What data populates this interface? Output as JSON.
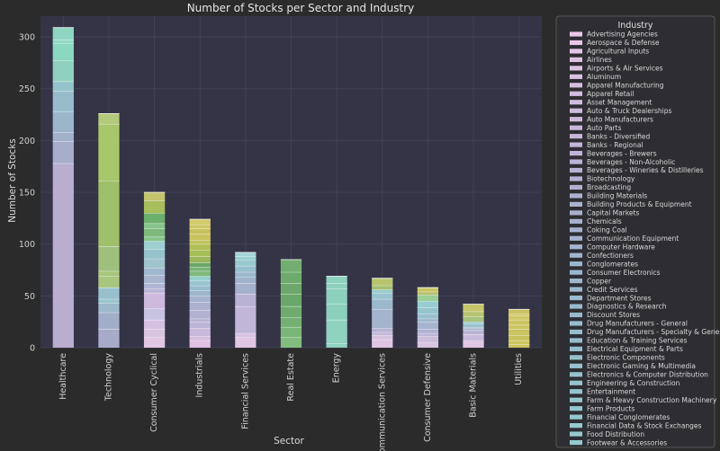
{
  "chart_data": {
    "type": "bar",
    "stacked": true,
    "title": "Number of Stocks per Sector and Industry",
    "xlabel": "Sector",
    "ylabel": "Number of Stocks",
    "ylim": [
      0,
      320
    ],
    "yticks": [
      0,
      50,
      100,
      150,
      200,
      250,
      300
    ],
    "grid": true,
    "legend_title": "Industry",
    "legend_position": "right",
    "categories": [
      "Healthcare",
      "Technology",
      "Consumer Cyclical",
      "Industrials",
      "Financial Services",
      "Real Estate",
      "Energy",
      "Communication Services",
      "Consumer Defensive",
      "Basic Materials",
      "Utilities"
    ],
    "totals": [
      309,
      226,
      150,
      124,
      92,
      85,
      69,
      67,
      58,
      42,
      37
    ],
    "segment_boundaries": [
      [
        178,
        199,
        208,
        228,
        248,
        257,
        277,
        294,
        297,
        309
      ],
      [
        18,
        34,
        43,
        47,
        58,
        69,
        74,
        98,
        161,
        216,
        226
      ],
      [
        10,
        18,
        27,
        38,
        53,
        57,
        62,
        70,
        77,
        86,
        95,
        103,
        107,
        115,
        120,
        130,
        142,
        150
      ],
      [
        7,
        11,
        19,
        25,
        28,
        36,
        44,
        50,
        55,
        60,
        65,
        69,
        74,
        78,
        82,
        88,
        94,
        100,
        104,
        110,
        115,
        119,
        124
      ],
      [
        10,
        14,
        40,
        52,
        62,
        68,
        73,
        79,
        85,
        88,
        92
      ],
      [
        10,
        20,
        29,
        40,
        52,
        62,
        73,
        85
      ],
      [
        4,
        27,
        42,
        57,
        62,
        69
      ],
      [
        8,
        12,
        15,
        19,
        37,
        47,
        53,
        56,
        60,
        67
      ],
      [
        5,
        11,
        14,
        18,
        25,
        28,
        33,
        39,
        45,
        51,
        54,
        58
      ],
      [
        5,
        7,
        13,
        17,
        19,
        20,
        23,
        25,
        30,
        35,
        42
      ],
      [
        3,
        7,
        12,
        18,
        22,
        27,
        31,
        33,
        37
      ]
    ],
    "segment_colors": [
      [
        "#b9aecf",
        "#a8adcb",
        "#a3b2cc",
        "#9bb6cb",
        "#98bccb",
        "#94c3cb",
        "#8fd1c0",
        "#8bd8c0",
        "#90d8c4",
        "#8ed6c2"
      ],
      [
        "#a7abc9",
        "#a2aec9",
        "#9db9cb",
        "#99c6cd",
        "#98c0cc",
        "#a7c77f",
        "#a8c67c",
        "#9ec07c",
        "#9fc06a",
        "#a8c66c",
        "#b3c97b"
      ],
      [
        "#e1c6e2",
        "#d9c4e0",
        "#d6c0df",
        "#c8c3e0",
        "#cdb9dc",
        "#b8b5d6",
        "#b2b4d3",
        "#a9b4cf",
        "#a0b8ce",
        "#a0c4ce",
        "#97c4cc",
        "#9dcfd0",
        "#88c58b",
        "#7fba7d",
        "#86c38a",
        "#6daf6c",
        "#a8bd5b",
        "#c4c46e"
      ],
      [
        "#dfc1e2",
        "#d6bee0",
        "#c9b9dc",
        "#bdb5d7",
        "#b7b3d4",
        "#b3b1d2",
        "#acb1cf",
        "#a5b3ce",
        "#9db6cc",
        "#98bbcc",
        "#98c4cf",
        "#96cece",
        "#7fb87d",
        "#77b275",
        "#6ba86a",
        "#9ab75c",
        "#a7bd58",
        "#b1bf57",
        "#bfc25b",
        "#c9c35e",
        "#c7c25d",
        "#cec766",
        "#d2c968"
      ],
      [
        "#e0c6e3",
        "#d8c2e1",
        "#c1b6d8",
        "#b9b2d4",
        "#a6b2cd",
        "#9fb4cc",
        "#9ab8cc",
        "#98bfcd",
        "#97c9cf",
        "#96cfd0",
        "#a1d4d6"
      ],
      [
        "#82bd7e",
        "#7ab677",
        "#74b072",
        "#6eab6d",
        "#6aa869",
        "#6ca86b",
        "#6eaa6c",
        "#72ae70"
      ],
      [
        "#8fd1bf",
        "#8fd2c0",
        "#8bcfbc",
        "#8dd0be",
        "#8fd1c0",
        "#8ed1bf"
      ],
      [
        "#e0c5e2",
        "#d6c2e0",
        "#c5b8d9",
        "#b6b3d4",
        "#a3b4cc",
        "#9bb8cd",
        "#99c3ce",
        "#98ccd0",
        "#a5bf72",
        "#b7c46d"
      ],
      [
        "#d8c3e0",
        "#ccbddc",
        "#bcb6d7",
        "#b0b2d1",
        "#a6b4cd",
        "#9eb7cc",
        "#99c0cd",
        "#94c6cc",
        "#97cdd0",
        "#9bcf96",
        "#b9c371",
        "#c9c564"
      ],
      [
        "#e0c5e2",
        "#d5c0df",
        "#c7badb",
        "#b8b3d4",
        "#a7b3cd",
        "#9cb7cc",
        "#97c1cd",
        "#98cbcf",
        "#a8c27c",
        "#b6c370",
        "#c6c56a"
      ],
      [
        "#c9c35f",
        "#cbc55f",
        "#c8c35d",
        "#c9c360",
        "#cbc560",
        "#cbc461",
        "#d0c766",
        "#cdc563",
        "#c9c35f"
      ]
    ],
    "legend": [
      {
        "label": "Advertising Agencies",
        "color": "#e8c9e8"
      },
      {
        "label": "Aerospace & Defense",
        "color": "#e6c7e7"
      },
      {
        "label": "Agricultural Inputs",
        "color": "#e3c5e5"
      },
      {
        "label": "Airlines",
        "color": "#e0c3e4"
      },
      {
        "label": "Airports & Air Services",
        "color": "#ddc1e2"
      },
      {
        "label": "Aluminum",
        "color": "#dac0e1"
      },
      {
        "label": "Apparel Manufacturing",
        "color": "#d7bfe0"
      },
      {
        "label": "Apparel Retail",
        "color": "#d4bddf"
      },
      {
        "label": "Asset Management",
        "color": "#d1bcdd"
      },
      {
        "label": "Auto & Truck Dealerships",
        "color": "#cebadc"
      },
      {
        "label": "Auto Manufacturers",
        "color": "#cbb9db"
      },
      {
        "label": "Auto Parts",
        "color": "#c8b7da"
      },
      {
        "label": "Banks - Diversified",
        "color": "#c5b6d8"
      },
      {
        "label": "Banks - Regional",
        "color": "#c2b5d7"
      },
      {
        "label": "Beverages - Brewers",
        "color": "#bfb4d6"
      },
      {
        "label": "Beverages - Non-Alcoholic",
        "color": "#bcb3d5"
      },
      {
        "label": "Beverages - Wineries & Distilleries",
        "color": "#b9b2d4"
      },
      {
        "label": "Biotechnology",
        "color": "#b6b1d3"
      },
      {
        "label": "Broadcasting",
        "color": "#b3b1d2"
      },
      {
        "label": "Building Materials",
        "color": "#b0b1d1"
      },
      {
        "label": "Building Products & Equipment",
        "color": "#adb1d0"
      },
      {
        "label": "Capital Markets",
        "color": "#aab1cf"
      },
      {
        "label": "Chemicals",
        "color": "#a8b2cf"
      },
      {
        "label": "Coking Coal",
        "color": "#a6b2ce"
      },
      {
        "label": "Communication Equipment",
        "color": "#a4b3ce"
      },
      {
        "label": "Computer Hardware",
        "color": "#a2b4cd"
      },
      {
        "label": "Confectioners",
        "color": "#a0b5cd"
      },
      {
        "label": "Conglomerates",
        "color": "#9eb6cd"
      },
      {
        "label": "Consumer Electronics",
        "color": "#9cb7cc"
      },
      {
        "label": "Copper",
        "color": "#9bb8cc"
      },
      {
        "label": "Credit Services",
        "color": "#9ab9cc"
      },
      {
        "label": "Department Stores",
        "color": "#99bacc"
      },
      {
        "label": "Diagnostics & Research",
        "color": "#98bbcc"
      },
      {
        "label": "Discount Stores",
        "color": "#98bccc"
      },
      {
        "label": "Drug Manufacturers - General",
        "color": "#97bdcc"
      },
      {
        "label": "Drug Manufacturers - Specialty & Generic",
        "color": "#97becc"
      },
      {
        "label": "Education & Training Services",
        "color": "#96bfcc"
      },
      {
        "label": "Electrical Equipment & Parts",
        "color": "#96c0cd"
      },
      {
        "label": "Electronic Components",
        "color": "#96c1cd"
      },
      {
        "label": "Electronic Gaming & Multimedia",
        "color": "#95c2cd"
      },
      {
        "label": "Electronics & Computer Distribution",
        "color": "#95c3cd"
      },
      {
        "label": "Engineering & Construction",
        "color": "#95c4ce"
      },
      {
        "label": "Entertainment",
        "color": "#95c5ce"
      },
      {
        "label": "Farm & Heavy Construction Machinery",
        "color": "#95c6ce"
      },
      {
        "label": "Farm Products",
        "color": "#95c7ce"
      },
      {
        "label": "Financial Conglomerates",
        "color": "#95c8cf"
      },
      {
        "label": "Financial Data & Stock Exchanges",
        "color": "#95c9cf"
      },
      {
        "label": "Food Distribution",
        "color": "#96cacf"
      },
      {
        "label": "Footwear & Accessories",
        "color": "#96cbd0"
      }
    ]
  },
  "colors": {
    "background": "#2b2b2b",
    "plot_background": "#343446",
    "grid": "#44445a",
    "text": "#d8d8d8",
    "separator": "#ffffff"
  }
}
